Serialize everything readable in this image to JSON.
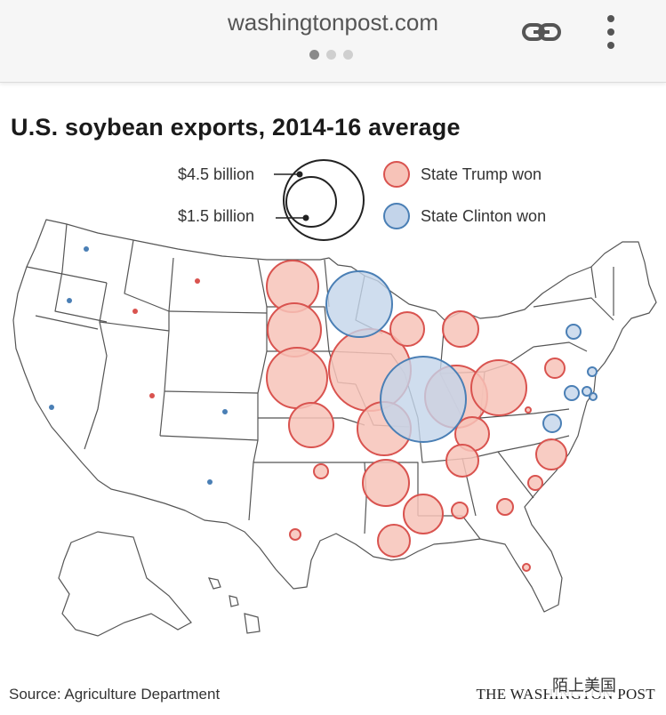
{
  "browser": {
    "url": "washingtonpost.com",
    "link_icon": "link-icon",
    "more_icon": "more-vertical-icon"
  },
  "chart": {
    "title": "U.S. soybean exports, 2014-16 average",
    "legend": {
      "size_large": "$4.5 billion",
      "size_small": "$1.5 billion",
      "trump": "State Trump won",
      "clinton": "State Clinton won"
    },
    "source": "Source: Agriculture Department",
    "credit": "THE WASHINGTON POST",
    "watermark": "陌上美国"
  },
  "colors": {
    "trump_fill": "#f7c3b8",
    "trump_stroke": "#d9534f",
    "clinton_fill": "#c3d4ea",
    "clinton_stroke": "#4a7fb5",
    "state_outline": "#555555"
  }
}
